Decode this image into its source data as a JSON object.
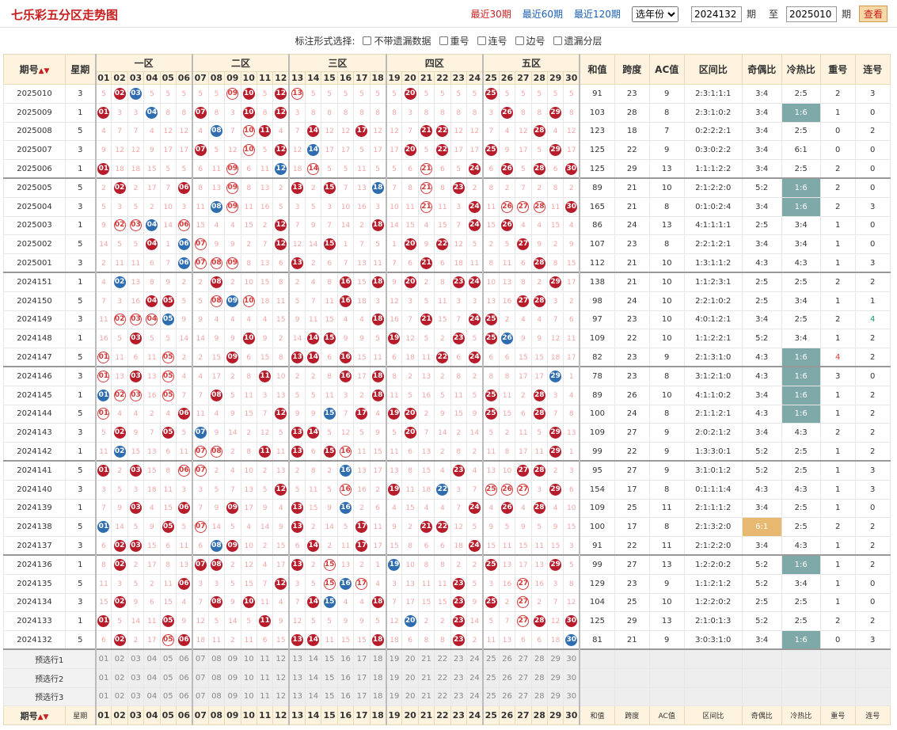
{
  "header": {
    "title": "七乐彩五分区走势图",
    "links": [
      "最近30期",
      "最近60期",
      "最近120期"
    ],
    "active_link": 0,
    "year_select": "选年份",
    "from_value": "2024132",
    "from_label": "期",
    "to_label": "至",
    "to_value": "2025010",
    "to_suffix": "期",
    "query": "查看"
  },
  "options": {
    "label": "标注形式选择:",
    "items": [
      "不带遗漏数据",
      "重号",
      "连号",
      "边号",
      "遗漏分层"
    ]
  },
  "columns": {
    "period": "期号",
    "week": "星期",
    "zones": [
      "一区",
      "二区",
      "三区",
      "四区",
      "五区"
    ],
    "stats": [
      "和值",
      "跨度",
      "AC值",
      "区间比",
      "奇偶比",
      "冷热比",
      "重号",
      "连号"
    ]
  },
  "numbers": [
    "01",
    "02",
    "03",
    "04",
    "05",
    "06",
    "07",
    "08",
    "09",
    "10",
    "11",
    "12",
    "13",
    "14",
    "15",
    "16",
    "17",
    "18",
    "19",
    "20",
    "21",
    "22",
    "23",
    "24",
    "25",
    "26",
    "27",
    "28",
    "29",
    "30"
  ],
  "colors": {
    "red": "#b81c2a",
    "blue": "#2f6db1",
    "header_bg": "#fdf3df",
    "hot_hl": "#7fa9a8",
    "hot_orange": "#e7b870"
  },
  "rows": [
    {
      "p": "2025010",
      "w": "3",
      "r": [
        2,
        10,
        12,
        20,
        25
      ],
      "b": [
        3
      ],
      "o": [
        9,
        13
      ],
      "s": [
        "91",
        "23",
        "9",
        "2:3:1:1:1",
        "3:4",
        "2:5",
        "2",
        "3"
      ]
    },
    {
      "p": "2025009",
      "w": "1",
      "r": [
        1,
        7,
        10,
        12,
        26,
        29
      ],
      "b": [
        4
      ],
      "o": [],
      "s": [
        "103",
        "28",
        "8",
        "2:3:1:0:2",
        "3:4",
        "1:6",
        "1",
        "0"
      ],
      "hot": "hl"
    },
    {
      "p": "2025008",
      "w": "5",
      "r": [
        11,
        14,
        17,
        21,
        22,
        28
      ],
      "b": [
        8
      ],
      "o": [
        10
      ],
      "s": [
        "123",
        "18",
        "7",
        "0:2:2:2:1",
        "3:4",
        "2:5",
        "0",
        "2"
      ]
    },
    {
      "p": "2025007",
      "w": "3",
      "r": [
        7,
        12,
        20,
        22,
        25,
        29
      ],
      "b": [
        14
      ],
      "o": [
        10
      ],
      "s": [
        "125",
        "22",
        "9",
        "0:3:0:2:2",
        "3:4",
        "6:1",
        "0",
        "0"
      ]
    },
    {
      "p": "2025006",
      "w": "1",
      "r": [
        1,
        24,
        26,
        28,
        30
      ],
      "b": [
        12
      ],
      "o": [
        9,
        14,
        21
      ],
      "s": [
        "125",
        "29",
        "13",
        "1:1:1:2:2",
        "3:4",
        "2:5",
        "2",
        "0"
      ]
    },
    {
      "p": "2025005",
      "w": "5",
      "r": [
        2,
        6,
        13,
        15,
        23
      ],
      "b": [
        18
      ],
      "o": [
        9,
        21
      ],
      "s": [
        "89",
        "21",
        "10",
        "2:1:2:2:0",
        "5:2",
        "1:6",
        "2",
        "0"
      ],
      "hot": "hl",
      "sep": true
    },
    {
      "p": "2025004",
      "w": "3",
      "r": [
        24,
        30
      ],
      "b": [
        8
      ],
      "o": [
        9,
        21,
        26,
        27,
        28
      ],
      "s": [
        "165",
        "21",
        "8",
        "0:1:0:2:4",
        "3:4",
        "1:6",
        "2",
        "3"
      ],
      "hot": "hl"
    },
    {
      "p": "2025003",
      "w": "1",
      "r": [
        12,
        18,
        24,
        26
      ],
      "b": [
        4
      ],
      "o": [
        2,
        3,
        6
      ],
      "s": [
        "86",
        "24",
        "13",
        "4:1:1:1:1",
        "2:5",
        "3:4",
        "1",
        "0"
      ]
    },
    {
      "p": "2025002",
      "w": "5",
      "r": [
        4,
        12,
        15,
        20,
        22,
        27
      ],
      "b": [
        6
      ],
      "o": [
        7
      ],
      "s": [
        "107",
        "23",
        "8",
        "2:2:1:2:1",
        "3:4",
        "3:4",
        "1",
        "0"
      ]
    },
    {
      "p": "2025001",
      "w": "3",
      "r": [
        13,
        21,
        28
      ],
      "b": [
        6
      ],
      "o": [
        7,
        8,
        9
      ],
      "s": [
        "112",
        "21",
        "10",
        "1:3:1:1:2",
        "4:3",
        "4:3",
        "1",
        "3"
      ]
    },
    {
      "p": "2024151",
      "w": "1",
      "r": [
        8,
        16,
        18,
        20,
        23,
        24,
        29
      ],
      "b": [
        2
      ],
      "o": [],
      "s": [
        "138",
        "21",
        "10",
        "1:1:2:3:1",
        "2:5",
        "2:5",
        "2",
        "2"
      ],
      "sep": true
    },
    {
      "p": "2024150",
      "w": "5",
      "r": [
        4,
        5,
        16,
        27,
        28
      ],
      "b": [
        9
      ],
      "o": [
        8,
        10
      ],
      "s": [
        "98",
        "24",
        "10",
        "2:2:1:0:2",
        "2:5",
        "3:4",
        "1",
        "1"
      ]
    },
    {
      "p": "2024149",
      "w": "3",
      "r": [
        18,
        21,
        24,
        25
      ],
      "b": [
        5
      ],
      "o": [
        2,
        3,
        4
      ],
      "s": [
        "97",
        "23",
        "10",
        "4:0:1:2:1",
        "3:4",
        "2:5",
        "2",
        "4"
      ]
    },
    {
      "p": "2024148",
      "w": "1",
      "r": [
        3,
        10,
        14,
        15,
        19,
        23,
        25
      ],
      "b": [
        26
      ],
      "o": [],
      "s": [
        "109",
        "22",
        "10",
        "1:1:2:2:1",
        "5:2",
        "3:4",
        "1",
        "2"
      ]
    },
    {
      "p": "2024147",
      "w": "5",
      "r": [
        9,
        13,
        14,
        16,
        22,
        24
      ],
      "b": [
        22
      ],
      "o": [
        1,
        5
      ],
      "s": [
        "82",
        "23",
        "9",
        "2:1:3:1:0",
        "4:3",
        "1:6",
        "4",
        "2"
      ],
      "hot": "hl"
    },
    {
      "p": "2024146",
      "w": "3",
      "r": [
        3,
        11,
        16,
        18
      ],
      "b": [
        29
      ],
      "o": [
        1,
        5
      ],
      "s": [
        "78",
        "23",
        "8",
        "3:1:2:1:0",
        "4:3",
        "1:6",
        "3",
        "0"
      ],
      "hot": "hl",
      "sep": true
    },
    {
      "p": "2024145",
      "w": "1",
      "r": [
        8,
        18,
        25,
        28
      ],
      "b": [
        1
      ],
      "o": [
        2,
        3,
        5
      ],
      "s": [
        "89",
        "26",
        "10",
        "4:1:1:0:2",
        "3:4",
        "1:6",
        "1",
        "2"
      ],
      "hot": "hl"
    },
    {
      "p": "2024144",
      "w": "5",
      "r": [
        6,
        12,
        17,
        19,
        20,
        25,
        28
      ],
      "b": [
        15
      ],
      "o": [
        1
      ],
      "s": [
        "100",
        "24",
        "8",
        "2:1:1:2:1",
        "4:3",
        "1:6",
        "1",
        "2"
      ],
      "hot": "hl"
    },
    {
      "p": "2024143",
      "w": "3",
      "r": [
        2,
        5,
        13,
        14,
        20,
        29
      ],
      "b": [
        7
      ],
      "o": [],
      "s": [
        "109",
        "27",
        "9",
        "2:0:2:1:2",
        "3:4",
        "4:3",
        "2",
        "2"
      ]
    },
    {
      "p": "2024142",
      "w": "1",
      "r": [
        11,
        13,
        15,
        29
      ],
      "b": [
        2
      ],
      "o": [
        7,
        8,
        16
      ],
      "s": [
        "99",
        "22",
        "9",
        "1:3:3:0:1",
        "5:2",
        "2:5",
        "1",
        "2"
      ]
    },
    {
      "p": "2024141",
      "w": "5",
      "r": [
        1,
        3,
        23,
        27,
        28
      ],
      "b": [
        16
      ],
      "o": [
        6,
        7
      ],
      "s": [
        "95",
        "27",
        "9",
        "3:1:0:1:2",
        "5:2",
        "2:5",
        "1",
        "3"
      ],
      "sep": true
    },
    {
      "p": "2024140",
      "w": "3",
      "r": [
        12,
        19,
        29
      ],
      "b": [
        22
      ],
      "o": [
        16,
        25,
        26,
        27
      ],
      "s": [
        "154",
        "17",
        "8",
        "0:1:1:1:4",
        "4:3",
        "4:3",
        "1",
        "3"
      ]
    },
    {
      "p": "2024139",
      "w": "1",
      "r": [
        3,
        6,
        9,
        13,
        24,
        26,
        28
      ],
      "b": [
        16
      ],
      "o": [],
      "s": [
        "109",
        "25",
        "11",
        "2:1:1:1:2",
        "3:4",
        "2:5",
        "1",
        "0"
      ]
    },
    {
      "p": "2024138",
      "w": "5",
      "r": [
        5,
        13,
        17,
        21,
        22
      ],
      "b": [
        1
      ],
      "o": [
        7
      ],
      "s": [
        "100",
        "17",
        "8",
        "2:1:3:2:0",
        "6:1",
        "2:5",
        "2",
        "2"
      ],
      "odd": "or"
    },
    {
      "p": "2024137",
      "w": "3",
      "r": [
        2,
        3,
        9,
        14,
        17,
        24
      ],
      "b": [
        8
      ],
      "o": [],
      "s": [
        "91",
        "22",
        "11",
        "2:1:2:2:0",
        "3:4",
        "4:3",
        "1",
        "2"
      ]
    },
    {
      "p": "2024136",
      "w": "1",
      "r": [
        2,
        7,
        8,
        13,
        25,
        29
      ],
      "b": [
        19
      ],
      "o": [
        15
      ],
      "s": [
        "99",
        "27",
        "13",
        "1:2:2:0:2",
        "5:2",
        "1:6",
        "1",
        "2"
      ],
      "hot": "hl",
      "sep": true
    },
    {
      "p": "2024135",
      "w": "5",
      "r": [
        6,
        12,
        23
      ],
      "b": [
        16
      ],
      "o": [
        15,
        17,
        27
      ],
      "s": [
        "129",
        "23",
        "9",
        "1:1:2:1:2",
        "5:2",
        "3:4",
        "1",
        "0"
      ]
    },
    {
      "p": "2024134",
      "w": "3",
      "r": [
        2,
        8,
        10,
        14,
        18,
        23,
        25
      ],
      "b": [
        15
      ],
      "o": [
        27
      ],
      "s": [
        "104",
        "25",
        "10",
        "1:2:2:0:2",
        "2:5",
        "2:5",
        "1",
        "0"
      ]
    },
    {
      "p": "2024133",
      "w": "1",
      "r": [
        1,
        5,
        11,
        23,
        28,
        30
      ],
      "b": [
        20
      ],
      "o": [
        27
      ],
      "s": [
        "125",
        "29",
        "13",
        "2:1:0:1:3",
        "5:2",
        "2:5",
        "2",
        "2"
      ]
    },
    {
      "p": "2024132",
      "w": "5",
      "r": [
        2,
        6,
        13,
        14,
        18,
        23
      ],
      "b": [
        30
      ],
      "o": [
        5
      ],
      "s": [
        "81",
        "21",
        "9",
        "3:0:3:1:0",
        "3:4",
        "1:6",
        "0",
        "3"
      ],
      "hot": "hl"
    }
  ],
  "preselect": [
    "预选行1",
    "预选行2",
    "预选行3"
  ]
}
